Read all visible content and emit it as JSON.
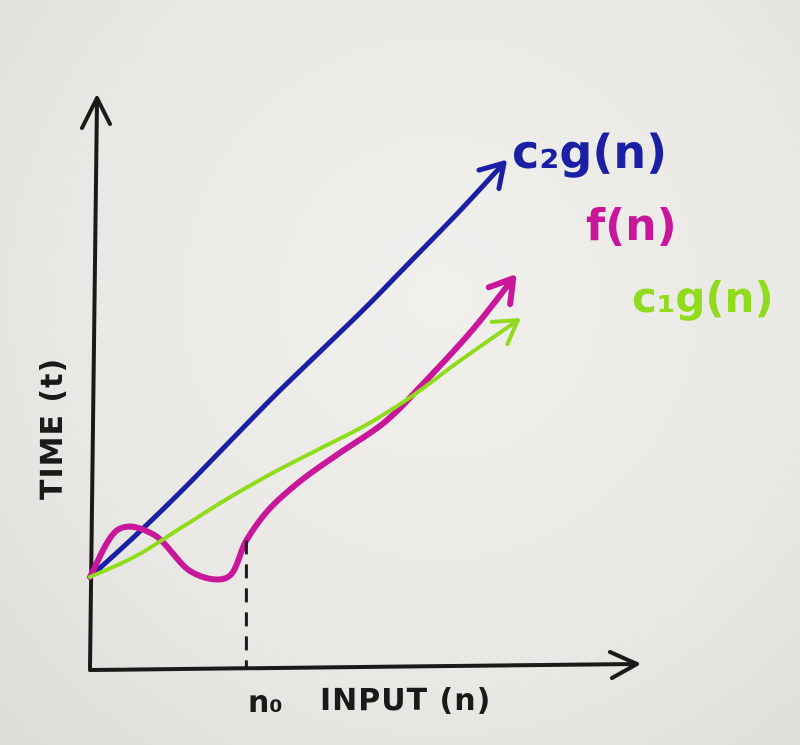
{
  "chart_data": {
    "type": "line",
    "xlabel": "INPUT (n)",
    "ylabel": "TIME (t)",
    "x_marker_label": "n₀",
    "grid": false,
    "series": [
      {
        "name": "c₂g(n)",
        "color": "#1b1fa3",
        "points": [
          [
            0,
            0
          ],
          [
            1,
            1.6
          ],
          [
            2,
            3.3
          ],
          [
            3,
            5.1
          ],
          [
            4,
            6.9
          ],
          [
            5,
            8.6
          ],
          [
            6,
            10.3
          ],
          [
            7,
            12.1
          ],
          [
            8,
            13.9
          ],
          [
            9,
            15.8
          ]
        ]
      },
      {
        "name": "f(n)",
        "color": "#c8179a",
        "points": [
          [
            0,
            0
          ],
          [
            0.6,
            1.8
          ],
          [
            1.4,
            1.6
          ],
          [
            2.2,
            0.2
          ],
          [
            3,
            0
          ],
          [
            3.4,
            1.4
          ],
          [
            3.9,
            2.6
          ],
          [
            4.6,
            3.7
          ],
          [
            5.4,
            4.7
          ],
          [
            6.4,
            5.9
          ],
          [
            7.2,
            7.3
          ],
          [
            8.3,
            9.4
          ],
          [
            9.2,
            11.4
          ]
        ]
      },
      {
        "name": "c₁g(n)",
        "color": "#8fdb1c",
        "points": [
          [
            0,
            0
          ],
          [
            1,
            0.8
          ],
          [
            2,
            1.9
          ],
          [
            3,
            3.0
          ],
          [
            4,
            4.0
          ],
          [
            5,
            4.9
          ],
          [
            6,
            5.8
          ],
          [
            7,
            6.9
          ],
          [
            8,
            8.2
          ],
          [
            9.3,
            9.8
          ]
        ]
      }
    ],
    "x_marker": 3.4
  }
}
